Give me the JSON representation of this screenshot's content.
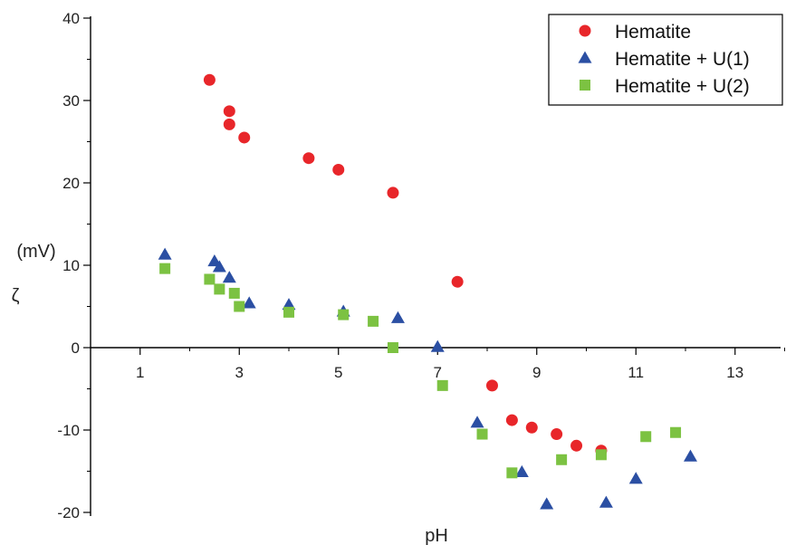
{
  "chart_data": {
    "type": "scatter",
    "title": "",
    "xlabel": "pH",
    "ylabel": "(mV)",
    "ylabel_symbol": "ζ",
    "xlim": [
      0,
      14
    ],
    "ylim": [
      -20,
      40
    ],
    "x_ticks": [
      1,
      3,
      5,
      7,
      9,
      11,
      13
    ],
    "x_tick_labels": [
      "1",
      "3",
      "5",
      "7",
      "9",
      "11",
      "13"
    ],
    "y_ticks": [
      -20,
      -10,
      0,
      10,
      20,
      30,
      40
    ],
    "y_tick_labels": [
      "-20",
      "-10",
      "0",
      "10",
      "20",
      "30",
      "40"
    ],
    "grid": false,
    "legend_position": "top-right",
    "series": [
      {
        "name": "Hematite",
        "marker": "circle",
        "color": "#e8262a",
        "points": [
          [
            2.4,
            32.5
          ],
          [
            2.8,
            28.7
          ],
          [
            2.8,
            27.1
          ],
          [
            3.1,
            25.5
          ],
          [
            4.4,
            23.0
          ],
          [
            5.0,
            21.6
          ],
          [
            6.1,
            18.8
          ],
          [
            7.4,
            8.0
          ],
          [
            8.1,
            -4.6
          ],
          [
            8.5,
            -8.8
          ],
          [
            8.9,
            -9.7
          ],
          [
            9.4,
            -10.5
          ],
          [
            9.8,
            -11.9
          ],
          [
            10.3,
            -12.5
          ]
        ]
      },
      {
        "name": "Hematite + U(1)",
        "marker": "triangle",
        "color": "#2b4fa3",
        "points": [
          [
            1.5,
            11.3
          ],
          [
            2.5,
            10.5
          ],
          [
            2.6,
            9.8
          ],
          [
            2.8,
            8.5
          ],
          [
            3.2,
            5.4
          ],
          [
            4.0,
            5.2
          ],
          [
            5.1,
            4.4
          ],
          [
            6.2,
            3.6
          ],
          [
            7.0,
            0.1
          ],
          [
            7.8,
            -9.1
          ],
          [
            8.7,
            -15.1
          ],
          [
            9.2,
            -19.0
          ],
          [
            10.4,
            -18.8
          ],
          [
            11.0,
            -15.9
          ],
          [
            12.1,
            -13.2
          ]
        ]
      },
      {
        "name": "Hematite + U(2)",
        "marker": "square",
        "color": "#7cc242",
        "points": [
          [
            1.5,
            9.6
          ],
          [
            2.4,
            8.3
          ],
          [
            2.6,
            7.1
          ],
          [
            2.9,
            6.6
          ],
          [
            3.0,
            5.0
          ],
          [
            4.0,
            4.3
          ],
          [
            5.1,
            4.0
          ],
          [
            5.7,
            3.2
          ],
          [
            6.1,
            0.0
          ],
          [
            7.1,
            -4.6
          ],
          [
            7.9,
            -10.5
          ],
          [
            8.5,
            -15.2
          ],
          [
            9.5,
            -13.6
          ],
          [
            10.3,
            -13.0
          ],
          [
            11.2,
            -10.8
          ],
          [
            11.8,
            -10.3
          ]
        ]
      }
    ]
  }
}
